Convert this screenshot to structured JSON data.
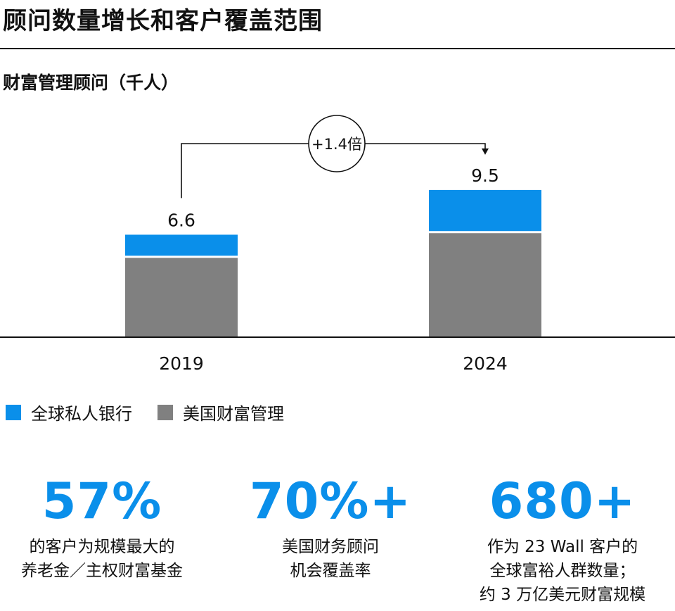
{
  "title": "顾问数量增长和客户覆盖范围",
  "subtitle": "财富管理顾问（千人）",
  "colors": {
    "global_private_bank": "#0a8fea",
    "us_wealth_management": "#808080",
    "accent": "#0a8fea"
  },
  "chart_data": {
    "type": "bar",
    "stacked": true,
    "categories": [
      "2019",
      "2024"
    ],
    "series": [
      {
        "name": "美国财富管理",
        "values": [
          5.1,
          6.7
        ]
      },
      {
        "name": "全球私人银行",
        "values": [
          1.5,
          2.8
        ]
      }
    ],
    "totals": [
      "6.6",
      "9.5"
    ],
    "annotation": "+1.4倍",
    "ylim": [
      0,
      10.5
    ]
  },
  "legend": [
    {
      "label": "全球私人银行",
      "color": "#0a8fea"
    },
    {
      "label": "美国财富管理",
      "color": "#808080"
    }
  ],
  "stats": [
    {
      "value": "57%",
      "line1": "的客户为规模最大的",
      "line2": "养老金／主权财富基金",
      "line3": ""
    },
    {
      "value": "70%+",
      "line1": "美国财务顾问",
      "line2": "机会覆盖率",
      "line3": ""
    },
    {
      "value": "680+",
      "line1": "作为 23 Wall 客户的",
      "line2": "全球富裕人群数量；",
      "line3": "约 3 万亿美元财富规模"
    }
  ]
}
